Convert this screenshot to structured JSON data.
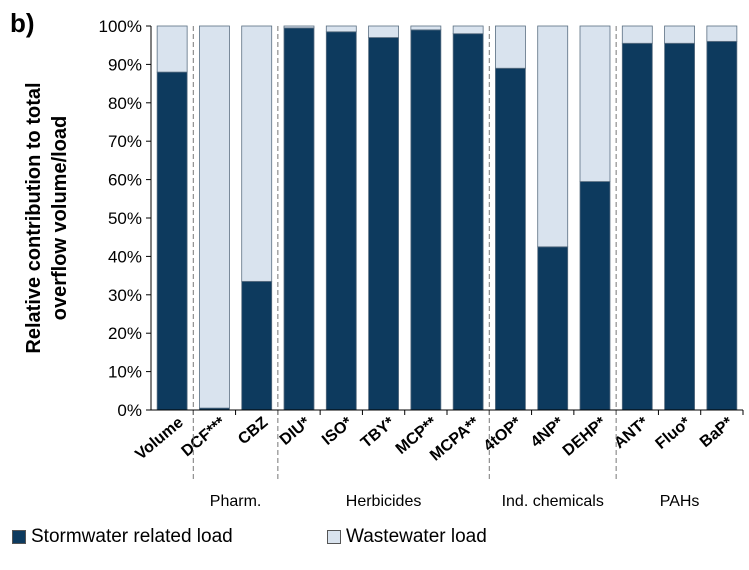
{
  "panel_label": "b)",
  "colors": {
    "stormwater": "#0d3a5e",
    "wastewater": "#d9e3ee",
    "edge": "#5a6f82"
  },
  "chart_data": {
    "type": "bar",
    "stacked": true,
    "ylabel": [
      "Relative contribution to total",
      "overflow volume/load"
    ],
    "ylim": [
      0,
      100
    ],
    "yticks": [
      "0%",
      "10%",
      "20%",
      "30%",
      "40%",
      "50%",
      "60%",
      "70%",
      "80%",
      "90%",
      "100%"
    ],
    "categories": [
      "Volume",
      "DCF***",
      "CBZ",
      "DIU*",
      "ISO*",
      "TBY*",
      "MCP**",
      "MCPA**",
      "4tOP*",
      "4NP*",
      "DEHP*",
      "ANT*",
      "Fluo*",
      "BaP*"
    ],
    "series": [
      {
        "name": "Stormwater related load",
        "values": [
          88,
          0.5,
          33.5,
          99.5,
          98.5,
          97,
          99,
          98,
          89,
          42.5,
          59.5,
          95.5,
          95.5,
          96
        ]
      },
      {
        "name": "Wastewater load",
        "values": [
          12,
          99.5,
          66.5,
          0.5,
          1.5,
          3,
          1,
          2,
          11,
          57.5,
          40.5,
          4.5,
          4.5,
          4
        ]
      }
    ],
    "groups": [
      {
        "label": "Pharm.",
        "categories": [
          "DCF***",
          "CBZ"
        ]
      },
      {
        "label": "Herbicides",
        "categories": [
          "DIU*",
          "ISO*",
          "TBY*",
          "MCP**",
          "MCPA**"
        ]
      },
      {
        "label": "Ind. chemicals",
        "categories": [
          "4tOP*",
          "4NP*",
          "DEHP*"
        ]
      },
      {
        "label": "PAHs",
        "categories": [
          "ANT*",
          "Fluo*",
          "BaP*"
        ]
      }
    ],
    "legend": "bottom"
  }
}
